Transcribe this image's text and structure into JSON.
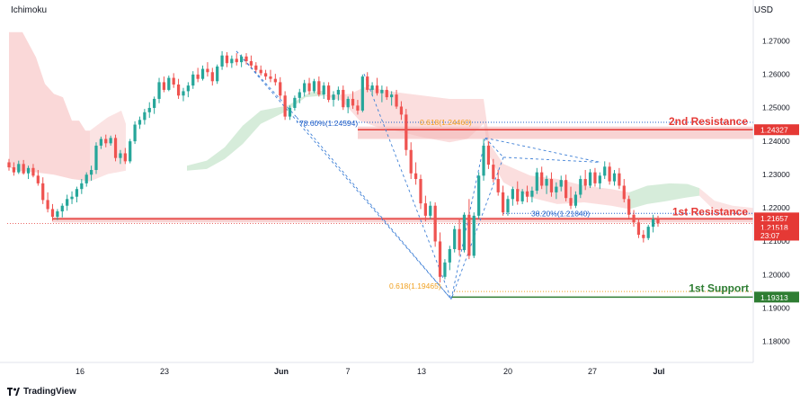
{
  "app": {
    "indicator": "Ichimoku",
    "currency": "USD",
    "brand": "TradingView"
  },
  "colors": {
    "up": "#26a69a",
    "down": "#ef5350",
    "cloud_bear": "#f8c8c8",
    "cloud_bull": "#d2ead6",
    "resistance": "#e53935",
    "support": "#2e7d32",
    "fib_blue": "#1e5ec8",
    "fib_orange": "#f0a020"
  },
  "chart_data": {
    "type": "candlestick",
    "y_axis": {
      "range": [
        1.17,
        1.275
      ],
      "ticks": [
        "1.27000",
        "1.26000",
        "1.25000",
        "1.24000",
        "1.23000",
        "1.22000",
        "1.21000",
        "1.20000",
        "1.19000",
        "1.18000"
      ]
    },
    "x_axis": {
      "ticks": [
        "16",
        "23",
        "Jun",
        "7",
        "13",
        "20",
        "27",
        "Jul"
      ]
    },
    "price_labels": [
      {
        "value": 1.24327,
        "text": "1.24327",
        "color": "#e53935"
      },
      {
        "value": 1.21657,
        "text": "1.21657",
        "color": "#e53935"
      },
      {
        "value": 1.21518,
        "text": "1.21518",
        "color": "#e53935"
      },
      {
        "value": 1.1935,
        "text": "23:07",
        "color": "#e53935"
      },
      {
        "value": 1.19313,
        "text": "1.19313",
        "color": "#2e7d32"
      }
    ],
    "levels": [
      {
        "name": "2nd Resistance",
        "value": 1.24327,
        "color": "#e53935"
      },
      {
        "name": "1st Resistance",
        "value": 1.21657,
        "color": "#e53935"
      },
      {
        "name": "1st Support",
        "value": 1.19313,
        "color": "#2e7d32"
      }
    ],
    "fib_labels": [
      {
        "text": "78.60%(1.24594)",
        "color": "#1e5ec8"
      },
      {
        "text": "0.618(1.24460)",
        "color": "#f0a020"
      },
      {
        "text": "38.20%(1.21840)",
        "color": "#1e5ec8"
      },
      {
        "text": "0.618(1.19465)",
        "color": "#f0a020"
      }
    ],
    "candles": [
      [
        1.2335,
        1.2345,
        1.231,
        1.232
      ],
      [
        1.232,
        1.2335,
        1.2295,
        1.2305
      ],
      [
        1.2305,
        1.234,
        1.23,
        1.233
      ],
      [
        1.233,
        1.2342,
        1.2298,
        1.2302
      ],
      [
        1.2302,
        1.2325,
        1.2285,
        1.2318
      ],
      [
        1.2318,
        1.233,
        1.229,
        1.2295
      ],
      [
        1.2295,
        1.2312,
        1.2265,
        1.2272
      ],
      [
        1.2272,
        1.229,
        1.221,
        1.2222
      ],
      [
        1.2222,
        1.2245,
        1.2185,
        1.2195
      ],
      [
        1.2195,
        1.221,
        1.216,
        1.2172
      ],
      [
        1.2172,
        1.2195,
        1.2162,
        1.2188
      ],
      [
        1.2188,
        1.2212,
        1.217,
        1.2205
      ],
      [
        1.2205,
        1.2238,
        1.219,
        1.2225
      ],
      [
        1.2225,
        1.2248,
        1.221,
        1.2232
      ],
      [
        1.2232,
        1.2262,
        1.2215,
        1.2255
      ],
      [
        1.2255,
        1.2285,
        1.224,
        1.2272
      ],
      [
        1.2272,
        1.2305,
        1.2262,
        1.2298
      ],
      [
        1.2298,
        1.2325,
        1.228,
        1.2312
      ],
      [
        1.2312,
        1.2395,
        1.23,
        1.2385
      ],
      [
        1.2385,
        1.2412,
        1.2375,
        1.2405
      ],
      [
        1.2405,
        1.2418,
        1.238,
        1.2392
      ],
      [
        1.2392,
        1.2415,
        1.2385,
        1.2408
      ],
      [
        1.2408,
        1.2418,
        1.2338,
        1.2348
      ],
      [
        1.2348,
        1.2372,
        1.233,
        1.2362
      ],
      [
        1.2362,
        1.2378,
        1.233,
        1.2338
      ],
      [
        1.2338,
        1.2405,
        1.2332,
        1.2398
      ],
      [
        1.2398,
        1.2458,
        1.239,
        1.2448
      ],
      [
        1.2448,
        1.2472,
        1.2435,
        1.2462
      ],
      [
        1.2462,
        1.2495,
        1.2448,
        1.2485
      ],
      [
        1.2485,
        1.2515,
        1.2468,
        1.2498
      ],
      [
        1.2498,
        1.2532,
        1.248,
        1.2525
      ],
      [
        1.2525,
        1.2588,
        1.2512,
        1.2575
      ],
      [
        1.2575,
        1.2592,
        1.2545,
        1.2552
      ],
      [
        1.2552,
        1.2595,
        1.2548,
        1.2588
      ],
      [
        1.2588,
        1.2602,
        1.2558,
        1.2568
      ],
      [
        1.2568,
        1.2585,
        1.2525,
        1.2535
      ],
      [
        1.2535,
        1.2558,
        1.2518,
        1.2548
      ],
      [
        1.2548,
        1.2575,
        1.253,
        1.2565
      ],
      [
        1.2565,
        1.2608,
        1.2555,
        1.2598
      ],
      [
        1.2598,
        1.2618,
        1.2575,
        1.2585
      ],
      [
        1.2585,
        1.2625,
        1.258,
        1.2615
      ],
      [
        1.2615,
        1.2635,
        1.2592,
        1.2605
      ],
      [
        1.2605,
        1.2618,
        1.2565,
        1.2578
      ],
      [
        1.2578,
        1.2628,
        1.257,
        1.2622
      ],
      [
        1.2622,
        1.2668,
        1.2612,
        1.2655
      ],
      [
        1.2655,
        1.2665,
        1.262,
        1.2632
      ],
      [
        1.2632,
        1.2655,
        1.2618,
        1.2645
      ],
      [
        1.2645,
        1.2662,
        1.2625,
        1.2635
      ],
      [
        1.2635,
        1.2658,
        1.262,
        1.2652
      ],
      [
        1.2652,
        1.2662,
        1.2628,
        1.2638
      ],
      [
        1.2638,
        1.2655,
        1.2618,
        1.2625
      ],
      [
        1.2625,
        1.2635,
        1.2605,
        1.2612
      ],
      [
        1.2612,
        1.2625,
        1.2595,
        1.2602
      ],
      [
        1.2602,
        1.2612,
        1.2582,
        1.2592
      ],
      [
        1.2592,
        1.2612,
        1.2575,
        1.2585
      ],
      [
        1.2585,
        1.26,
        1.2565,
        1.2575
      ],
      [
        1.2575,
        1.259,
        1.2525,
        1.2535
      ],
      [
        1.2535,
        1.2548,
        1.2462,
        1.2472
      ],
      [
        1.2472,
        1.2505,
        1.2462,
        1.2498
      ],
      [
        1.2498,
        1.2535,
        1.249,
        1.2528
      ],
      [
        1.2528,
        1.2555,
        1.2512,
        1.2545
      ],
      [
        1.2545,
        1.2582,
        1.2532,
        1.2572
      ],
      [
        1.2572,
        1.2588,
        1.2538,
        1.2548
      ],
      [
        1.2548,
        1.2585,
        1.2542,
        1.2578
      ],
      [
        1.2578,
        1.2592,
        1.2532,
        1.2538
      ],
      [
        1.2538,
        1.2575,
        1.2525,
        1.2565
      ],
      [
        1.2565,
        1.2575,
        1.2515,
        1.2522
      ],
      [
        1.2522,
        1.2548,
        1.2502,
        1.2538
      ],
      [
        1.2538,
        1.2562,
        1.252,
        1.2552
      ],
      [
        1.2552,
        1.2565,
        1.2492,
        1.25
      ],
      [
        1.25,
        1.2532,
        1.2482,
        1.2525
      ],
      [
        1.2525,
        1.2548,
        1.2495,
        1.2505
      ],
      [
        1.2505,
        1.2522,
        1.2478,
        1.249
      ],
      [
        1.249,
        1.2598,
        1.2485,
        1.2592
      ],
      [
        1.2592,
        1.2605,
        1.2545,
        1.2552
      ],
      [
        1.2552,
        1.2575,
        1.2535,
        1.2565
      ],
      [
        1.2565,
        1.2588,
        1.2535,
        1.2542
      ],
      [
        1.2542,
        1.2565,
        1.2515,
        1.2552
      ],
      [
        1.2552,
        1.2562,
        1.2522,
        1.253
      ],
      [
        1.253,
        1.2548,
        1.2505,
        1.2538
      ],
      [
        1.2538,
        1.2552,
        1.2495,
        1.2502
      ],
      [
        1.2502,
        1.2518,
        1.2462,
        1.2478
      ],
      [
        1.2478,
        1.2495,
        1.2355,
        1.2372
      ],
      [
        1.2372,
        1.2395,
        1.2285,
        1.2302
      ],
      [
        1.2302,
        1.2335,
        1.2268,
        1.2285
      ],
      [
        1.2285,
        1.2298,
        1.2195,
        1.2212
      ],
      [
        1.2212,
        1.2235,
        1.2158,
        1.2175
      ],
      [
        1.2175,
        1.2218,
        1.2165,
        1.2205
      ],
      [
        1.2205,
        1.2215,
        1.2082,
        1.2098
      ],
      [
        1.2098,
        1.2125,
        1.1975,
        1.1992
      ],
      [
        1.1992,
        1.2045,
        1.1985,
        1.2035
      ],
      [
        1.2035,
        1.2085,
        1.2012,
        1.2075
      ],
      [
        1.2075,
        1.2145,
        1.2065,
        1.2135
      ],
      [
        1.2135,
        1.2165,
        1.2055,
        1.2072
      ],
      [
        1.2072,
        1.2185,
        1.2065,
        1.2178
      ],
      [
        1.2178,
        1.2225,
        1.2045,
        1.2055
      ],
      [
        1.2055,
        1.2185,
        1.2048,
        1.2175
      ],
      [
        1.2175,
        1.2305,
        1.2165,
        1.2295
      ],
      [
        1.2295,
        1.2405,
        1.228,
        1.2385
      ],
      [
        1.2385,
        1.2398,
        1.2315,
        1.2328
      ],
      [
        1.2328,
        1.2345,
        1.2275,
        1.2285
      ],
      [
        1.2285,
        1.2312,
        1.2235,
        1.2245
      ],
      [
        1.2245,
        1.2265,
        1.2175,
        1.2185
      ],
      [
        1.2185,
        1.2235,
        1.2175,
        1.2225
      ],
      [
        1.2225,
        1.2262,
        1.2205,
        1.2255
      ],
      [
        1.2255,
        1.2278,
        1.2208,
        1.2218
      ],
      [
        1.2218,
        1.2255,
        1.221,
        1.2248
      ],
      [
        1.2248,
        1.2265,
        1.2215,
        1.2232
      ],
      [
        1.2232,
        1.2262,
        1.2215,
        1.225
      ],
      [
        1.225,
        1.2318,
        1.224,
        1.2305
      ],
      [
        1.2305,
        1.2322,
        1.2255,
        1.2265
      ],
      [
        1.2265,
        1.2295,
        1.224,
        1.2285
      ],
      [
        1.2285,
        1.2305,
        1.2232,
        1.2245
      ],
      [
        1.2245,
        1.2275,
        1.2225,
        1.2262
      ],
      [
        1.2262,
        1.2295,
        1.2248,
        1.2282
      ],
      [
        1.2282,
        1.2298,
        1.2218,
        1.2228
      ],
      [
        1.2228,
        1.2262,
        1.2195,
        1.2205
      ],
      [
        1.2205,
        1.2248,
        1.2198,
        1.2238
      ],
      [
        1.2238,
        1.2295,
        1.2228,
        1.2285
      ],
      [
        1.2285,
        1.2312,
        1.2252,
        1.2265
      ],
      [
        1.2265,
        1.2315,
        1.2258,
        1.2305
      ],
      [
        1.2305,
        1.2318,
        1.2262,
        1.2272
      ],
      [
        1.2272,
        1.2305,
        1.2255,
        1.2295
      ],
      [
        1.2295,
        1.2338,
        1.2285,
        1.2322
      ],
      [
        1.2322,
        1.2335,
        1.2268,
        1.2278
      ],
      [
        1.2278,
        1.2312,
        1.2265,
        1.2302
      ],
      [
        1.2302,
        1.2318,
        1.2255,
        1.2265
      ],
      [
        1.2265,
        1.2285,
        1.2215,
        1.2225
      ],
      [
        1.2225,
        1.2235,
        1.2168,
        1.2178
      ],
      [
        1.2178,
        1.2192,
        1.2142,
        1.2155
      ],
      [
        1.2155,
        1.2168,
        1.2108,
        1.2118
      ],
      [
        1.2118,
        1.2132,
        1.2095,
        1.2108
      ],
      [
        1.2108,
        1.2148,
        1.2102,
        1.2142
      ],
      [
        1.2142,
        1.2178,
        1.2125,
        1.2165
      ],
      [
        1.2165,
        1.2175,
        1.2142,
        1.2152
      ]
    ]
  }
}
